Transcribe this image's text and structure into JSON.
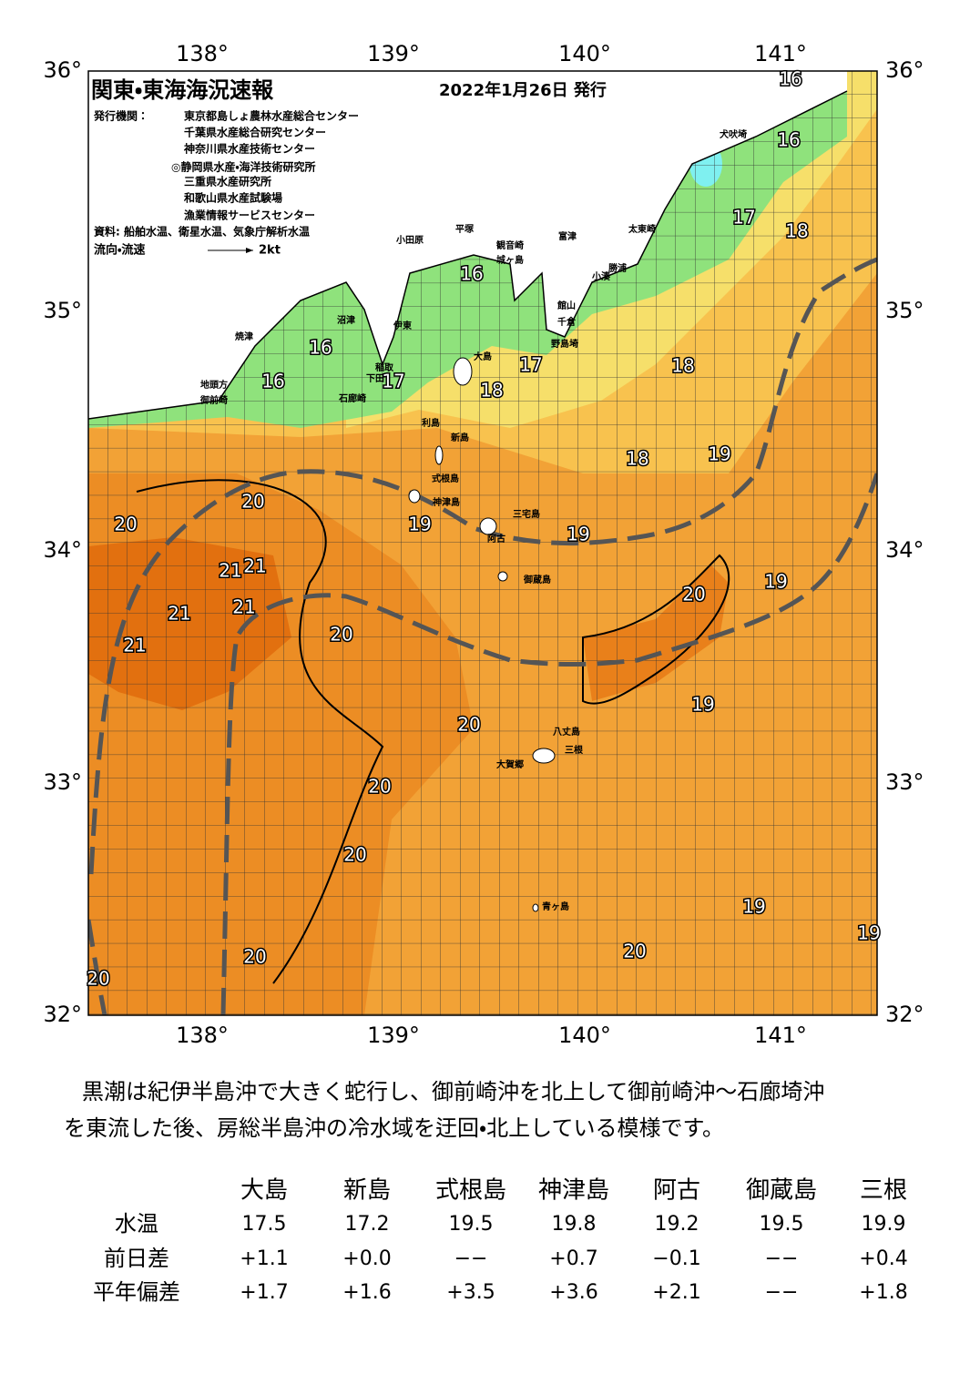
{
  "map": {
    "title": "関東・東海海況速報",
    "issued": "2022年1月26日 発行",
    "publisher_label": "発行機関：",
    "publishers": [
      "東京都島しょ農林水産総合センター",
      "千葉県水産総合研究センター",
      "神奈川県水産技術センター",
      "◎静岡県水産・海洋技術研究所",
      "三重県水産研究所",
      "和歌山県水産試験場",
      "漁業情報サービスセンター"
    ],
    "source": "資料: 船舶水温、衛星水温、気象庁解析水温",
    "flow_label": "流向・流速",
    "flow_unit": "2kt",
    "lon_labels": [
      "138°",
      "139°",
      "140°",
      "141°"
    ],
    "lat_labels": [
      "36°",
      "35°",
      "34°",
      "33°",
      "32°"
    ],
    "places": [
      "犬吠埼",
      "太東崎",
      "勝浦",
      "小湊",
      "館山",
      "千倉",
      "野島埼",
      "富津",
      "観音崎",
      "城ヶ島",
      "平塚",
      "小田原",
      "沼津",
      "伊東",
      "焼津",
      "地頭方",
      "御前崎",
      "稲取",
      "下田",
      "石廊崎",
      "大島",
      "利島",
      "新島",
      "式根島",
      "神津島",
      "三宅島",
      "阿古",
      "御蔵島",
      "八丈島",
      "三根",
      "大賀郷",
      "青ヶ島"
    ],
    "temperature_labels": [
      16,
      16,
      17,
      18,
      16,
      16,
      16,
      17,
      17,
      18,
      18,
      18,
      19,
      20,
      20,
      19,
      19,
      21,
      21,
      19,
      20,
      21,
      21,
      20,
      21,
      19,
      20,
      20,
      20,
      19,
      19,
      20,
      20,
      20
    ]
  },
  "summary": [
    "黒潮は紀伊半島沖で大きく蛇行し、御前崎沖を北上して御前崎沖～石廊埼沖",
    "を東流した後、房総半島沖の冷水域を迂回・北上している模様です。"
  ],
  "table": {
    "columns": [
      "大島",
      "新島",
      "式根島",
      "神津島",
      "阿古",
      "御蔵島",
      "三根"
    ],
    "rows": [
      {
        "label": "水温",
        "values": [
          "17.5",
          "17.2",
          "19.5",
          "19.8",
          "19.2",
          "19.5",
          "19.9"
        ]
      },
      {
        "label": "前日差",
        "values": [
          "+1.1",
          "+0.0",
          "−−",
          "+0.7",
          "−0.1",
          "−−",
          "+0.4"
        ]
      },
      {
        "label": "平年偏差",
        "values": [
          "+1.7",
          "+1.6",
          "+3.5",
          "+3.6",
          "+2.1",
          "−−",
          "+1.8"
        ]
      }
    ]
  }
}
